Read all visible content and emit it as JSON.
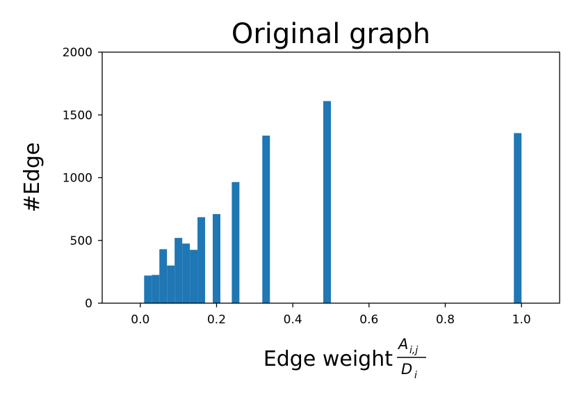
{
  "chart_data": {
    "type": "bar",
    "title": "Original graph",
    "xlabel": "Edge weight",
    "xlabel_fraction": {
      "numerator": "A",
      "numerator_sub": "i,j",
      "denominator": "D",
      "denominator_sub": "i"
    },
    "ylabel": "#Edge",
    "xlim": [
      -0.1,
      1.1
    ],
    "ylim": [
      0,
      2000
    ],
    "xticks": [
      "0.0",
      "0.2",
      "0.4",
      "0.6",
      "0.8",
      "1.0"
    ],
    "yticks": [
      "0",
      "500",
      "1000",
      "1500",
      "2000"
    ],
    "bar_color": "#1f77b4",
    "grid": false,
    "bars": [
      {
        "x0": 0.01,
        "x1": 0.03,
        "value": 220
      },
      {
        "x0": 0.03,
        "x1": 0.05,
        "value": 225
      },
      {
        "x0": 0.05,
        "x1": 0.07,
        "value": 430
      },
      {
        "x0": 0.07,
        "x1": 0.09,
        "value": 300
      },
      {
        "x0": 0.09,
        "x1": 0.11,
        "value": 520
      },
      {
        "x0": 0.11,
        "x1": 0.13,
        "value": 475
      },
      {
        "x0": 0.13,
        "x1": 0.15,
        "value": 425
      },
      {
        "x0": 0.15,
        "x1": 0.17,
        "value": 685
      },
      {
        "x0": 0.19,
        "x1": 0.21,
        "value": 710
      },
      {
        "x0": 0.24,
        "x1": 0.26,
        "value": 965
      },
      {
        "x0": 0.32,
        "x1": 0.34,
        "value": 1335
      },
      {
        "x0": 0.48,
        "x1": 0.5,
        "value": 1610
      },
      {
        "x0": 0.98,
        "x1": 1.0,
        "value": 1355
      }
    ]
  }
}
